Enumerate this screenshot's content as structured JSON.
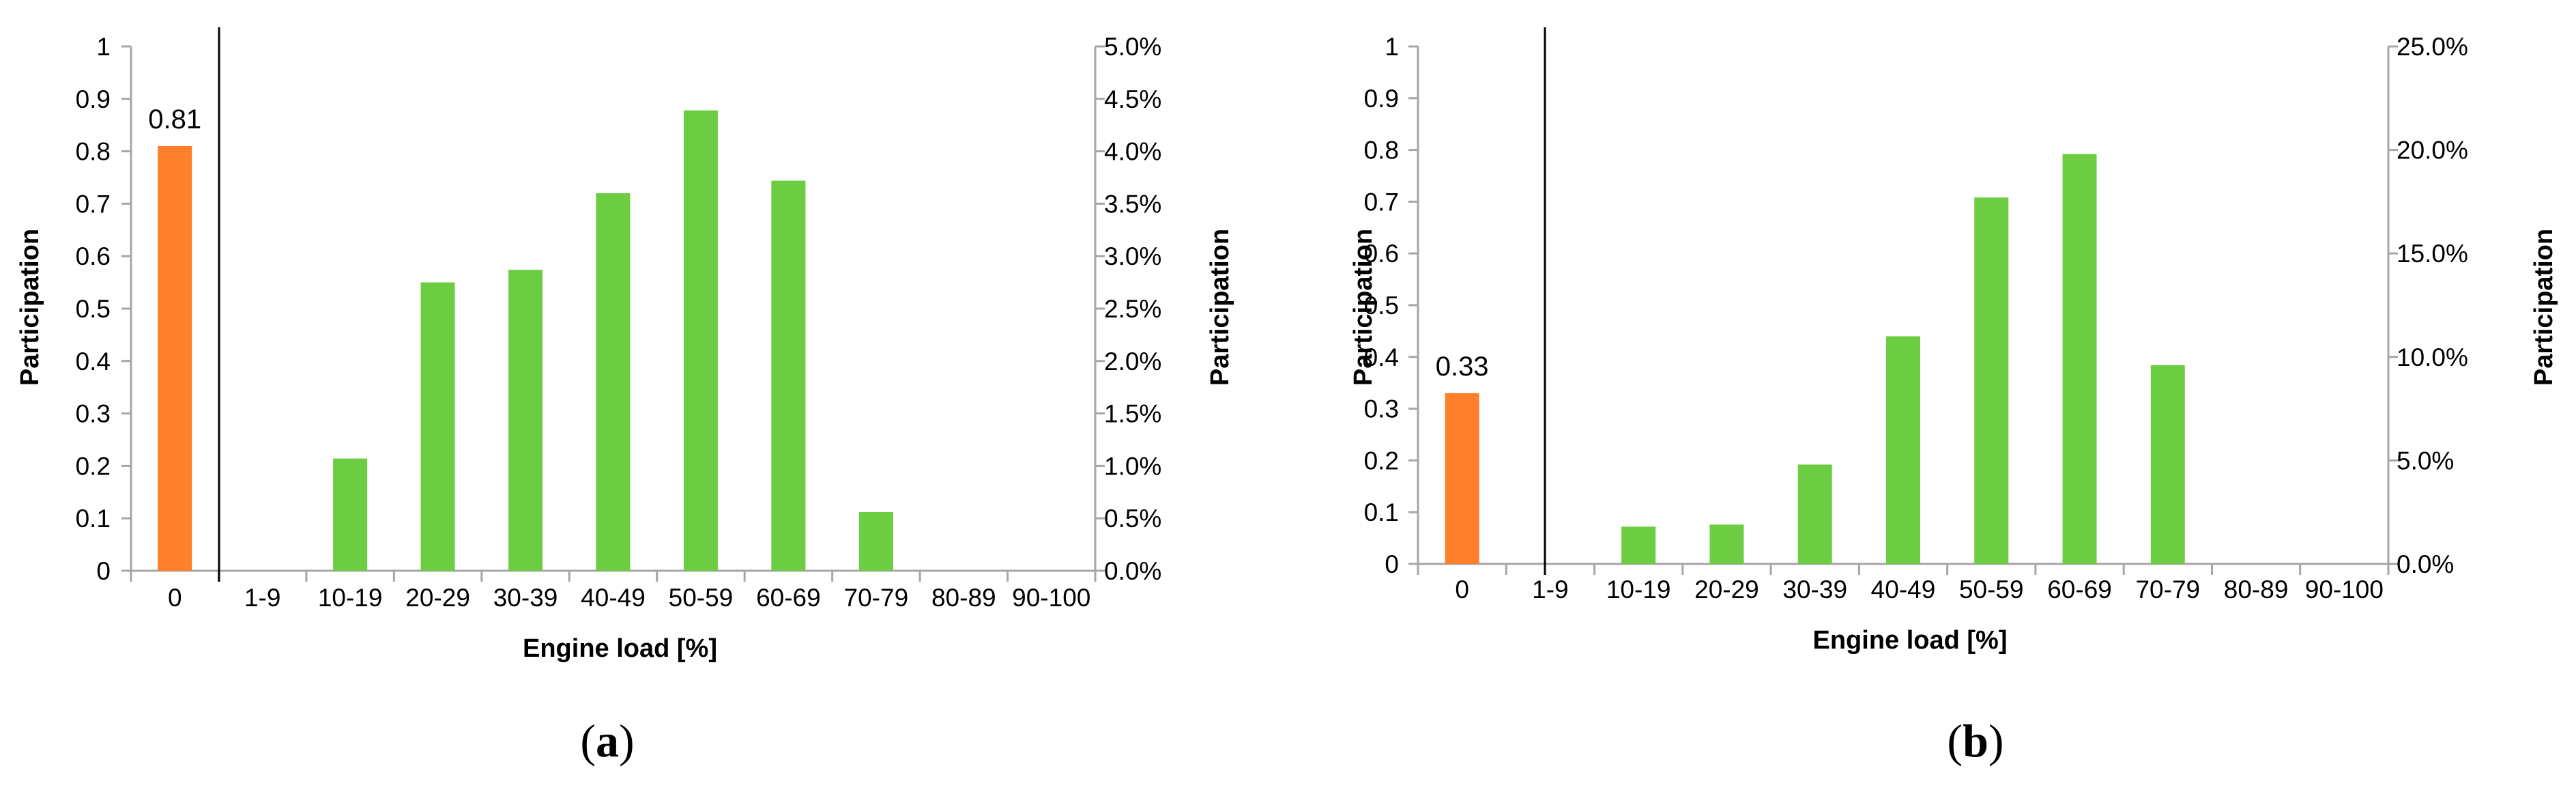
{
  "colors": {
    "zero_bar": "#FF7F2A",
    "load_bar": "#6CCD42",
    "axis": "#A6A6A6",
    "divider": "#000000"
  },
  "chart_data": [
    {
      "type": "bar",
      "panel_label": "a",
      "categories": [
        "0",
        "1-9",
        "10-19",
        "20-29",
        "30-39",
        "40-49",
        "50-59",
        "60-69",
        "70-79",
        "80-89",
        "90-100"
      ],
      "series": [
        {
          "axis": "left",
          "values": [
            0.81,
            null,
            null,
            null,
            null,
            null,
            null,
            null,
            null,
            null,
            null
          ]
        },
        {
          "axis": "right",
          "values": [
            0,
            0,
            0.0107,
            0.0275,
            0.0287,
            0.036,
            0.0439,
            0.0372,
            0.0056,
            0,
            0
          ]
        }
      ],
      "data_labels": [
        "0.81"
      ],
      "xlabel": "Engine load [%]",
      "ylabel_left": "Participation",
      "ylabel_right": "Participation",
      "ylim_left": [
        0,
        1
      ],
      "ylim_right": [
        0,
        0.05
      ],
      "yticks_left": [
        "0",
        "0.1",
        "0.2",
        "0.3",
        "0.4",
        "0.5",
        "0.6",
        "0.7",
        "0.8",
        "0.9",
        "1"
      ],
      "yticks_right": [
        "0.0%",
        "0.5%",
        "1.0%",
        "1.5%",
        "2.0%",
        "2.5%",
        "3.0%",
        "3.5%",
        "4.0%",
        "4.5%",
        "5.0%"
      ],
      "grid": false
    },
    {
      "type": "bar",
      "panel_label": "b",
      "categories": [
        "0",
        "1-9",
        "10-19",
        "20-29",
        "30-39",
        "40-49",
        "50-59",
        "60-69",
        "70-79",
        "80-89",
        "90-100"
      ],
      "series": [
        {
          "axis": "left",
          "values": [
            0.33,
            null,
            null,
            null,
            null,
            null,
            null,
            null,
            null,
            null,
            null
          ]
        },
        {
          "axis": "right",
          "values": [
            0,
            0,
            0.018,
            0.019,
            0.048,
            0.11,
            0.177,
            0.198,
            0.096,
            0,
            0
          ]
        }
      ],
      "data_labels": [
        "0.33"
      ],
      "xlabel": "Engine load [%]",
      "ylabel_left": "Participation",
      "ylabel_right": "Participation",
      "ylim_left": [
        0,
        1
      ],
      "ylim_right": [
        0,
        0.25
      ],
      "yticks_left": [
        "0",
        "0.1",
        "0.2",
        "0.3",
        "0.4",
        "0.5",
        "0.6",
        "0.7",
        "0.8",
        "0.9",
        "1"
      ],
      "yticks_right": [
        "0.0%",
        "5.0%",
        "10.0%",
        "15.0%",
        "20.0%",
        "25.0%"
      ],
      "grid": false
    }
  ]
}
